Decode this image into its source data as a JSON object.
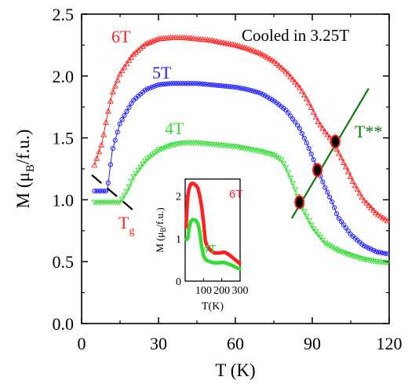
{
  "chart_data": {
    "type": "scatter",
    "main": {
      "xlabel": "T (K)",
      "ylabel_main": "M (μ",
      "ylabel_sub": "B",
      "ylabel_tail": "/f.u.)",
      "xlim": [
        0,
        120
      ],
      "ylim": [
        0.0,
        2.5
      ],
      "xticks": [
        "0",
        "30",
        "60",
        "90",
        "120"
      ],
      "yticks": [
        "0.0",
        "0.5",
        "1.0",
        "1.5",
        "2.0",
        "2.5"
      ],
      "annotation": "Cooled in 3.25T",
      "series": [
        {
          "name": "6T",
          "color": "#ff2020",
          "marker": "triangle-open",
          "x": [
            5,
            8,
            10,
            12,
            15,
            20,
            25,
            30,
            35,
            40,
            45,
            50,
            55,
            60,
            65,
            70,
            75,
            80,
            85,
            88,
            90,
            92,
            95,
            98,
            100,
            103,
            106,
            110,
            115,
            120
          ],
          "y": [
            1.28,
            1.46,
            1.68,
            1.86,
            2.02,
            2.17,
            2.26,
            2.3,
            2.31,
            2.31,
            2.3,
            2.29,
            2.27,
            2.25,
            2.22,
            2.18,
            2.12,
            2.03,
            1.91,
            1.81,
            1.73,
            1.64,
            1.55,
            1.47,
            1.39,
            1.27,
            1.14,
            1.0,
            0.89,
            0.82
          ]
        },
        {
          "name": "5T",
          "color": "#2020ff",
          "marker": "circle-open",
          "x": [
            5,
            8,
            10,
            12,
            15,
            20,
            25,
            30,
            35,
            40,
            45,
            50,
            55,
            60,
            65,
            70,
            75,
            80,
            85,
            88,
            90,
            92,
            95,
            98,
            100,
            105,
            110,
            115,
            120
          ],
          "y": [
            1.07,
            1.07,
            1.07,
            1.4,
            1.62,
            1.8,
            1.89,
            1.93,
            1.94,
            1.94,
            1.94,
            1.93,
            1.92,
            1.91,
            1.89,
            1.86,
            1.8,
            1.72,
            1.58,
            1.45,
            1.35,
            1.25,
            1.1,
            0.97,
            0.86,
            0.72,
            0.63,
            0.58,
            0.56
          ]
        },
        {
          "name": "4T",
          "color": "#33dd33",
          "marker": "triangle-down-open",
          "x": [
            5,
            10,
            15,
            18,
            20,
            25,
            30,
            35,
            40,
            45,
            50,
            55,
            60,
            65,
            70,
            75,
            78,
            80,
            83,
            85,
            88,
            90,
            95,
            100,
            105,
            110,
            115,
            120
          ],
          "y": [
            0.98,
            0.98,
            0.98,
            1.08,
            1.18,
            1.32,
            1.4,
            1.44,
            1.46,
            1.46,
            1.45,
            1.44,
            1.43,
            1.41,
            1.39,
            1.36,
            1.32,
            1.25,
            1.1,
            0.98,
            0.86,
            0.78,
            0.65,
            0.59,
            0.55,
            0.52,
            0.5,
            0.49
          ]
        }
      ],
      "labels": {
        "s6T": "6T",
        "s5T": "5T",
        "s4T": "4T",
        "tg_main": "T",
        "tg_sub": "g",
        "tss": "T**"
      },
      "tss_line": {
        "x": [
          82,
          112
        ],
        "y": [
          0.85,
          1.9
        ],
        "color": "#0a7a0a"
      },
      "tss_points": {
        "x": [
          85,
          92,
          99
        ],
        "y": [
          0.98,
          1.24,
          1.47
        ]
      },
      "tg_line": {
        "x": [
          4,
          21
        ],
        "y": [
          1.2,
          0.9
        ]
      }
    },
    "inset": {
      "xlabel": "T(K)",
      "ylabel_main": "M (μ",
      "ylabel_sub": "B",
      "ylabel_tail": "/f.u.)",
      "xlim": [
        0,
        300
      ],
      "ylim": [
        0,
        2.4
      ],
      "xticks": [
        "100",
        "200",
        "300"
      ],
      "yticks": [
        "0",
        "1",
        "2"
      ],
      "series": [
        {
          "name": "6T",
          "color": "#ff2020",
          "x": [
            5,
            10,
            15,
            20,
            30,
            40,
            50,
            60,
            70,
            80,
            90,
            100,
            110,
            120,
            140,
            160,
            180,
            200,
            210,
            220,
            240,
            260,
            280,
            300
          ],
          "y": [
            1.25,
            1.7,
            2.0,
            2.15,
            2.28,
            2.3,
            2.28,
            2.25,
            2.18,
            2.0,
            1.75,
            1.4,
            0.95,
            0.82,
            0.72,
            0.66,
            0.66,
            0.67,
            0.68,
            0.67,
            0.62,
            0.55,
            0.48,
            0.4
          ]
        },
        {
          "name": "4T",
          "color": "#33dd33",
          "x": [
            5,
            10,
            15,
            20,
            30,
            40,
            50,
            60,
            70,
            80,
            90,
            100,
            110,
            120,
            140,
            160,
            180,
            200,
            210,
            220,
            240,
            260,
            280,
            300
          ],
          "y": [
            0.98,
            0.98,
            1.02,
            1.2,
            1.4,
            1.45,
            1.44,
            1.42,
            1.35,
            1.15,
            0.8,
            0.6,
            0.52,
            0.48,
            0.45,
            0.43,
            0.43,
            0.44,
            0.44,
            0.43,
            0.4,
            0.36,
            0.32,
            0.28
          ]
        }
      ],
      "labels": {
        "s6T": "6T",
        "s4T": "4T"
      }
    }
  }
}
